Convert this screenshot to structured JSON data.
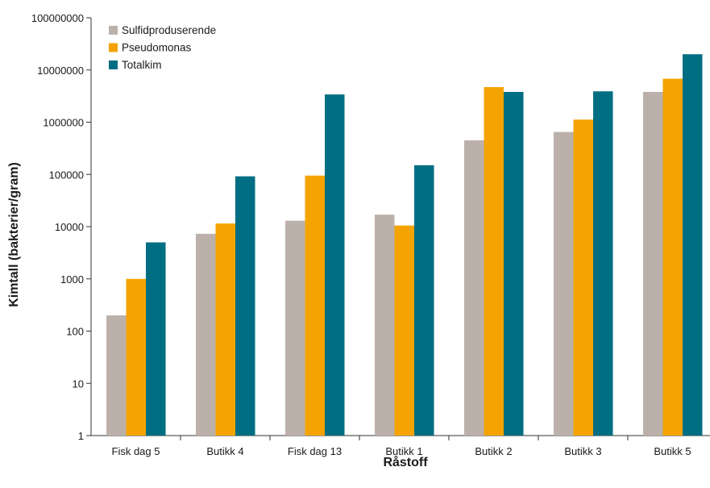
{
  "chart_data": {
    "type": "bar",
    "xlabel": "Råstoff",
    "ylabel": "Kimtall (bakterier/gram)",
    "yscale": "log",
    "ylim": [
      1,
      100000000
    ],
    "yticks": [
      "1",
      "10",
      "100",
      "1000",
      "10000",
      "100000",
      "1000000",
      "10000000",
      "100000000"
    ],
    "categories": [
      "Fisk dag 5",
      "Butikk 4",
      "Fisk dag 13",
      "Butikk 1",
      "Butikk 2",
      "Butikk 3",
      "Butikk 5"
    ],
    "series": [
      {
        "name": "Sulfidproduserende",
        "color": "#bcb1aa",
        "values": [
          200,
          7300,
          13000,
          17000,
          450000,
          650000,
          3800000
        ]
      },
      {
        "name": "Pseudomonas",
        "color": "#f5a300",
        "values": [
          1000,
          11500,
          95000,
          10500,
          4700000,
          1120000,
          6800000
        ]
      },
      {
        "name": "Totalkim",
        "color": "#006e82",
        "values": [
          5000,
          92000,
          3400000,
          150000,
          3800000,
          3900000,
          20000000
        ]
      }
    ],
    "legend_position": "top-left",
    "grid": false
  }
}
